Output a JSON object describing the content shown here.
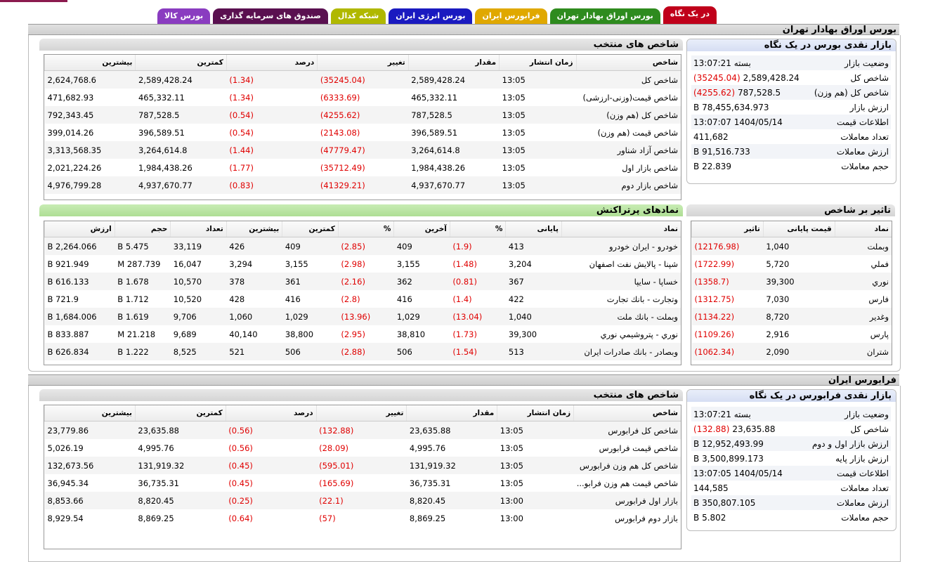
{
  "tabs": [
    {
      "label": "در یک نگاه",
      "color": "#c0001a"
    },
    {
      "label": "بورس اوراق بهادار تهران",
      "color": "#2e8b1e"
    },
    {
      "label": "فرابورس ایران",
      "color": "#e0a800"
    },
    {
      "label": "بورس انرژی ایران",
      "color": "#1a1ac0"
    },
    {
      "label": "شبکه کدال",
      "color": "#b0b800"
    },
    {
      "label": "صندوق های سرمایه گذاری",
      "color": "#5a1050"
    },
    {
      "label": "بورس کالا",
      "color": "#8a3cc0"
    }
  ],
  "tse": {
    "section_title": "بورس اوراق بهادار تهران",
    "summary": {
      "title": "بازار نقدی بورس در یک نگاه",
      "rows": [
        {
          "k": "وضعیت بازار",
          "v": "بسته 13:07:21",
          "neg": ""
        },
        {
          "k": "شاخص کل",
          "v": "2,589,428.24",
          "neg": "(35245.04)"
        },
        {
          "k": "شاخص کل (هم وزن)",
          "v": "787,528.5",
          "neg": "(4255.62)"
        },
        {
          "k": "ارزش بازار",
          "v": "78,455,634.973 B",
          "neg": ""
        },
        {
          "k": "اطلاعات قیمت",
          "v": "1404/05/14 13:07:07",
          "neg": ""
        },
        {
          "k": "تعداد معاملات",
          "v": "411,682",
          "neg": ""
        },
        {
          "k": "ارزش معاملات",
          "v": "91,516.733 B",
          "neg": ""
        },
        {
          "k": "حجم معاملات",
          "v": "22.839 B",
          "neg": ""
        }
      ]
    },
    "indices": {
      "title": "شاخص های منتخب",
      "headers": [
        "شاخص",
        "زمان انتشار",
        "مقدار",
        "تغییر",
        "درصد",
        "کمترین",
        "بیشترین"
      ],
      "rows": [
        [
          "شاخص کل",
          "13:05",
          "2,589,428.24",
          "(35245.04)",
          "(1.34)",
          "2,589,428.24",
          "2,624,768.6"
        ],
        [
          "شاخص قیمت(وزنی-ارزشی)",
          "13:05",
          "465,332.11",
          "(6333.69)",
          "(1.34)",
          "465,332.11",
          "471,682.93"
        ],
        [
          "شاخص کل (هم وزن)",
          "13:05",
          "787,528.5",
          "(4255.62)",
          "(0.54)",
          "787,528.5",
          "792,343.45"
        ],
        [
          "شاخص قیمت (هم وزن)",
          "13:05",
          "396,589.51",
          "(2143.08)",
          "(0.54)",
          "396,589.51",
          "399,014.26"
        ],
        [
          "شاخص آزاد شناور",
          "13:05",
          "3,264,614.8",
          "(47779.47)",
          "(1.44)",
          "3,264,614.8",
          "3,313,568.35"
        ],
        [
          "شاخص بازار اول",
          "13:05",
          "1,984,438.26",
          "(35712.49)",
          "(1.77)",
          "1,984,438.26",
          "2,021,224.26"
        ],
        [
          "شاخص بازار دوم",
          "13:05",
          "4,937,670.77",
          "(41329.21)",
          "(0.83)",
          "4,937,670.77",
          "4,976,799.28"
        ]
      ]
    },
    "impact": {
      "title": "تاثیر بر شاخص",
      "headers": [
        "نماد",
        "قیمت پایانی",
        "تاثیر"
      ],
      "rows": [
        [
          "وبملت",
          "1,040",
          "(12176.98)"
        ],
        [
          "فملي",
          "5,720",
          "(1722.99)"
        ],
        [
          "نوري",
          "39,300",
          "(1358.7)"
        ],
        [
          "فارس",
          "7,030",
          "(1312.75)"
        ],
        [
          "وغدير",
          "8,720",
          "(1134.22)"
        ],
        [
          "پارس",
          "2,916",
          "(1109.26)"
        ],
        [
          "شتران",
          "2,090",
          "(1062.34)"
        ]
      ]
    },
    "active": {
      "title": "نمادهای پرتراکنش",
      "headers": [
        "نماد",
        "پایانی",
        "%",
        "آخرین",
        "%",
        "کمترین",
        "بیشترین",
        "تعداد",
        "حجم",
        "ارزش"
      ],
      "rows": [
        [
          "خودرو - ايران خودرو",
          "413",
          "(1.9)",
          "409",
          "(2.85)",
          "409",
          "426",
          "33,119",
          "5.475 B",
          "2,264.066 B"
        ],
        [
          "شپنا - پالايش نفت اصفهان",
          "3,204",
          "(1.48)",
          "3,155",
          "(2.98)",
          "3,155",
          "3,294",
          "16,047",
          "287.739 M",
          "921.949 B"
        ],
        [
          "خساپا - سايپا",
          "367",
          "(0.81)",
          "362",
          "(2.16)",
          "361",
          "378",
          "10,570",
          "1.678 B",
          "616.133 B"
        ],
        [
          "وتجارت - بانك تجارت",
          "422",
          "(1.4)",
          "416",
          "(2.8)",
          "416",
          "428",
          "10,520",
          "1.712 B",
          "721.9 B"
        ],
        [
          "وبملت - بانك ملت",
          "1,040",
          "(13.04)",
          "1,029",
          "(13.96)",
          "1,029",
          "1,060",
          "9,706",
          "1.619 B",
          "1,684.006 B"
        ],
        [
          "نوري - پتروشيمي نوري",
          "39,300",
          "(1.73)",
          "38,810",
          "(2.95)",
          "38,800",
          "40,140",
          "9,689",
          "21.218 M",
          "833.887 B"
        ],
        [
          "وبصادر - بانك صادرات ايران",
          "513",
          "(1.54)",
          "506",
          "(2.88)",
          "506",
          "521",
          "8,525",
          "1.222 B",
          "626.834 B"
        ]
      ]
    }
  },
  "ifb": {
    "section_title": "فرابورس ایران",
    "summary": {
      "title": "بازار نقدی فرابورس در یک نگاه",
      "rows": [
        {
          "k": "وضعیت بازار",
          "v": "بسته 13:07:21",
          "neg": ""
        },
        {
          "k": "شاخص کل",
          "v": "23,635.88",
          "neg": "(132.88)"
        },
        {
          "k": "ارزش بازار اول و دوم",
          "v": "12,952,493.99 B",
          "neg": ""
        },
        {
          "k": "ارزش بازار پایه",
          "v": "3,500,899.173 B",
          "neg": ""
        },
        {
          "k": "اطلاعات قیمت",
          "v": "1404/05/14 13:07:05",
          "neg": ""
        },
        {
          "k": "تعداد معاملات",
          "v": "144,585",
          "neg": ""
        },
        {
          "k": "ارزش معاملات",
          "v": "350,807.105 B",
          "neg": ""
        },
        {
          "k": "حجم معاملات",
          "v": "5.802 B",
          "neg": ""
        }
      ]
    },
    "indices": {
      "title": "شاخص های منتخب",
      "headers": [
        "شاخص",
        "زمان انتشار",
        "مقدار",
        "تغییر",
        "درصد",
        "کمترین",
        "بیشترین"
      ],
      "rows": [
        [
          "شاخص کل فرابورس",
          "13:05",
          "23,635.88",
          "(132.88)",
          "(0.56)",
          "23,635.88",
          "23,779.86"
        ],
        [
          "شاخص قیمت فرابورس",
          "13:05",
          "4,995.76",
          "(28.09)",
          "(0.56)",
          "4,995.76",
          "5,026.19"
        ],
        [
          "شاخص کل هم وزن فرابورس",
          "13:05",
          "131,919.32",
          "(595.01)",
          "(0.45)",
          "131,919.32",
          "132,673.56"
        ],
        [
          "شاخص قیمت هم وزن فرابو...",
          "13:05",
          "36,735.31",
          "(165.69)",
          "(0.45)",
          "36,735.31",
          "36,945.34"
        ],
        [
          "بازار اول فرابورس",
          "13:00",
          "8,820.45",
          "(22.1)",
          "(0.25)",
          "8,820.45",
          "8,853.66"
        ],
        [
          "بازار دوم فرابورس",
          "13:00",
          "8,869.25",
          "(57)",
          "(0.64)",
          "8,869.25",
          "8,929.54"
        ]
      ]
    }
  }
}
